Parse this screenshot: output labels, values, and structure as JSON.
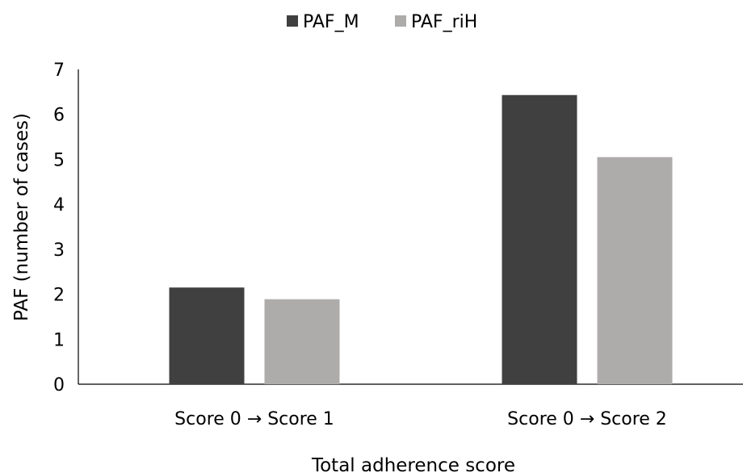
{
  "chart_data": {
    "type": "bar",
    "categories": [
      "Score 0 → Score 1",
      "Score 0 → Score 2"
    ],
    "series": [
      {
        "name": "PAF_M",
        "values": [
          2.15,
          6.43
        ],
        "color": "#404040"
      },
      {
        "name": "PAF_riH",
        "values": [
          1.89,
          5.05
        ],
        "color": "#aeabab"
      }
    ],
    "title": "",
    "xlabel": "Total adherence score",
    "ylabel": "PAF (number of cases)",
    "ylim": [
      0,
      7
    ],
    "yticks": [
      0,
      1,
      2,
      3,
      4,
      5,
      6,
      7
    ],
    "grid": false,
    "legend_position": "top-center"
  }
}
